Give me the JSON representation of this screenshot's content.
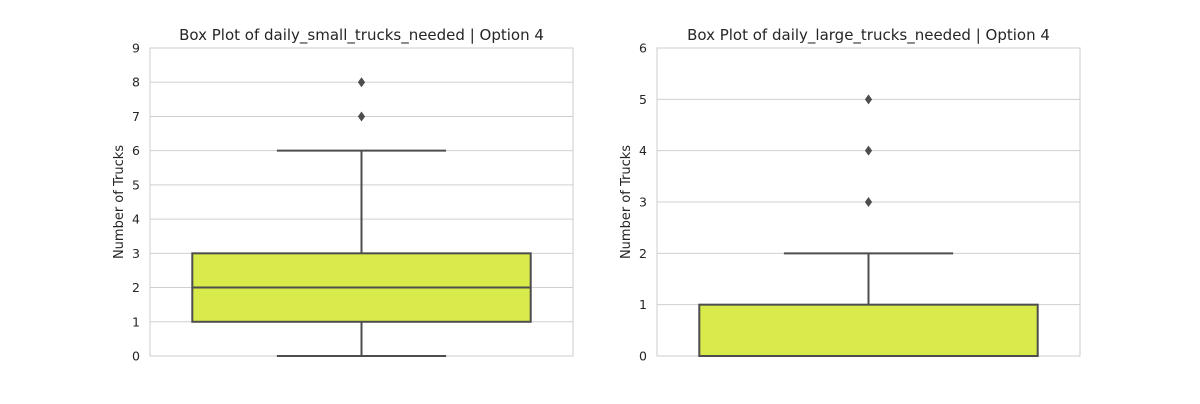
{
  "chart_data": [
    {
      "type": "box",
      "title": "Box Plot of daily_small_trucks_needed | Option 4",
      "xlabel": "",
      "ylabel": "Number of Trucks",
      "ylim": [
        0,
        9
      ],
      "yticks": [
        "0",
        "1",
        "2",
        "3",
        "4",
        "5",
        "6",
        "7",
        "8",
        "9"
      ],
      "grid": true,
      "box": {
        "whisker_low": 0,
        "q1": 1,
        "median": 2,
        "q3": 3,
        "whisker_high": 6
      },
      "outliers": [
        7,
        8
      ],
      "color": "#d9ea4b"
    },
    {
      "type": "box",
      "title": "Box Plot of daily_large_trucks_needed | Option 4",
      "xlabel": "",
      "ylabel": "Number of Trucks",
      "ylim": [
        0,
        6
      ],
      "yticks": [
        "0",
        "1",
        "2",
        "3",
        "4",
        "5",
        "6"
      ],
      "grid": true,
      "box": {
        "whisker_low": 0,
        "q1": 0,
        "median": 0,
        "q3": 1,
        "whisker_high": 2
      },
      "outliers": [
        3,
        4,
        5
      ],
      "color": "#d9ea4b"
    }
  ]
}
